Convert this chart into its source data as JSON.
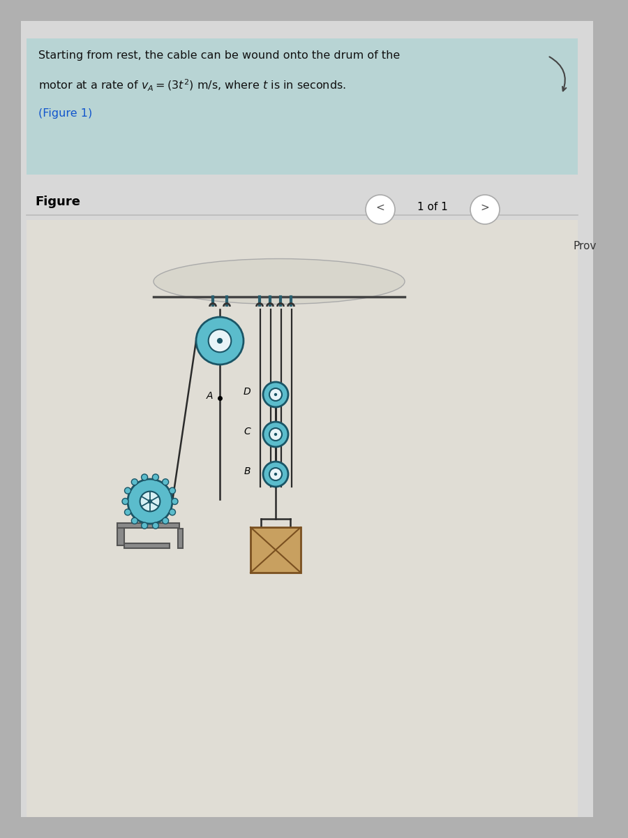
{
  "bg_outer": "#b0b0b0",
  "bg_panel": "#c8c8c8",
  "bg_inner": "#d8d8d8",
  "text_box_bg": "#b8d4d4",
  "text_line1": "Starting from rest, the cable can be wound onto the drum of the",
  "text_line2": "motor at a rate of $v_A = (3t^2)$ m/s, where $t$ is in seconds.",
  "text_line3": "(Figure 1)",
  "figure_label": "Figure",
  "nav_text": "1 of 1",
  "prov_text": "Prov",
  "pulley_color": "#5bbccc",
  "pulley_rim": "#1a5566",
  "rope_color": "#2a2a2a",
  "ceiling_color": "#d0cfc0",
  "hook_color": "#2a6070",
  "motor_color": "#5bbccc",
  "wall_color": "#7a7a7a",
  "shelf_color": "#8a8a8a",
  "box_color": "#c8a060",
  "box_line_color": "#7a5020",
  "figure_section_bg": "#e8e6e0",
  "diagram_bg": "#e0ddd5"
}
